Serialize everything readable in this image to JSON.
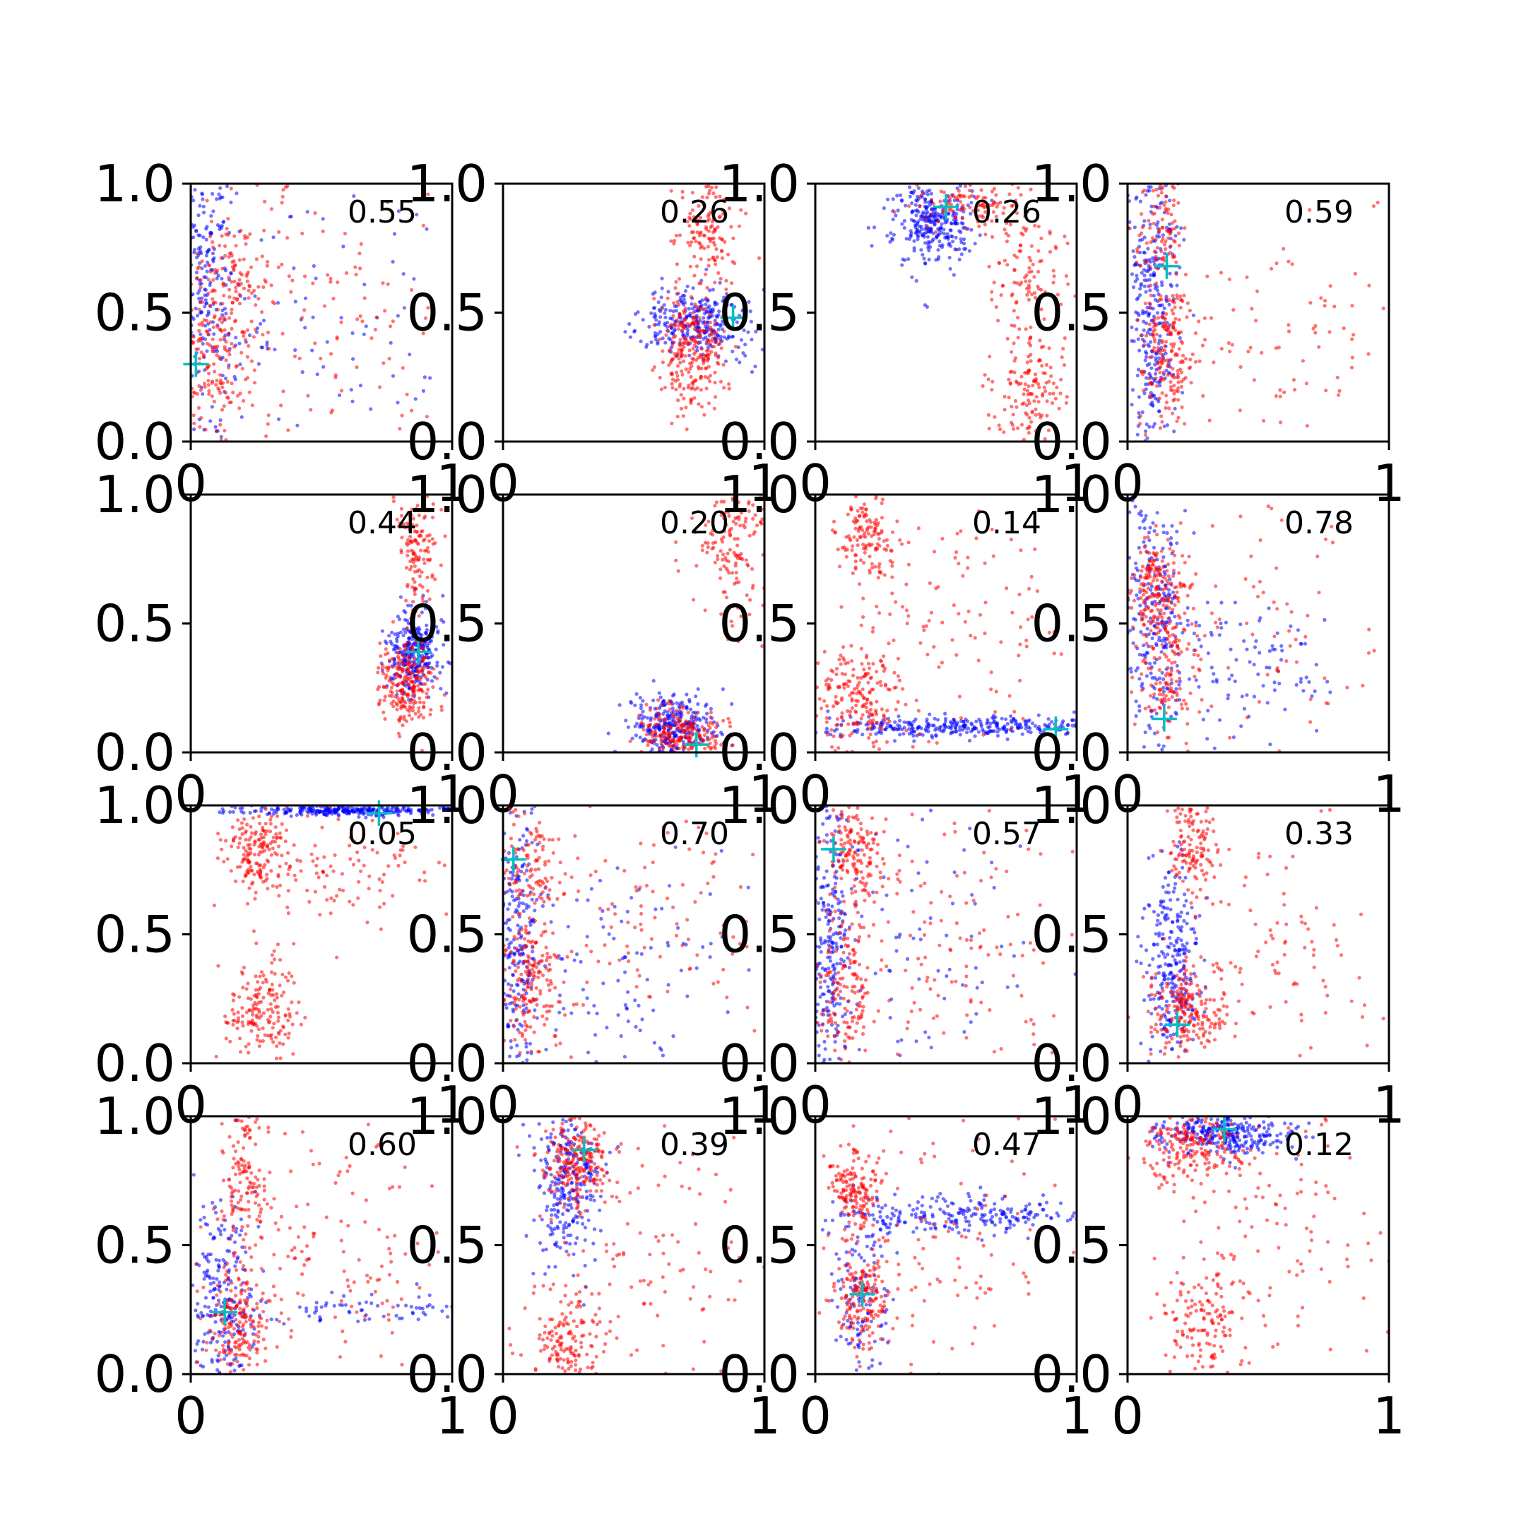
{
  "chart_data": {
    "type": "scatter",
    "grid": false,
    "colors": {
      "series_a": "#0000ff",
      "series_b": "#ff0000",
      "marker": "#00bfbf"
    },
    "xlim": [
      0,
      1
    ],
    "ylim": [
      0,
      1
    ],
    "xticks": [
      "0",
      "1"
    ],
    "yticks": [
      "0.0",
      "0.5",
      "1.0"
    ],
    "panels": [
      {
        "score": "0.55",
        "marker": [
          0.02,
          0.3
        ],
        "blue": [
          {
            "cx": 0.05,
            "cy": 0.6,
            "sx": 0.06,
            "sy": 0.3,
            "n": 260
          },
          {
            "cx": 0.4,
            "cy": 0.5,
            "sx": 0.25,
            "sy": 0.3,
            "n": 100
          }
        ],
        "red": [
          {
            "cx": 0.1,
            "cy": 0.3,
            "sx": 0.07,
            "sy": 0.15,
            "n": 160
          },
          {
            "cx": 0.15,
            "cy": 0.65,
            "sx": 0.08,
            "sy": 0.12,
            "n": 110
          },
          {
            "cx": 0.5,
            "cy": 0.5,
            "sx": 0.25,
            "sy": 0.3,
            "n": 130
          }
        ]
      },
      {
        "score": "0.26",
        "marker": [
          0.88,
          0.48
        ],
        "blue": [
          {
            "cx": 0.75,
            "cy": 0.47,
            "sx": 0.1,
            "sy": 0.07,
            "n": 300
          }
        ],
        "red": [
          {
            "cx": 0.72,
            "cy": 0.36,
            "sx": 0.06,
            "sy": 0.12,
            "n": 260
          },
          {
            "cx": 0.78,
            "cy": 0.82,
            "sx": 0.06,
            "sy": 0.12,
            "n": 130
          }
        ]
      },
      {
        "score": "0.26",
        "marker": [
          0.5,
          0.91
        ],
        "blue": [
          {
            "cx": 0.45,
            "cy": 0.85,
            "sx": 0.08,
            "sy": 0.08,
            "n": 300
          }
        ],
        "red": [
          {
            "cx": 0.6,
            "cy": 0.92,
            "sx": 0.1,
            "sy": 0.05,
            "n": 120
          },
          {
            "cx": 0.82,
            "cy": 0.65,
            "sx": 0.07,
            "sy": 0.1,
            "n": 90
          },
          {
            "cx": 0.82,
            "cy": 0.2,
            "sx": 0.07,
            "sy": 0.12,
            "n": 150
          }
        ]
      },
      {
        "score": "0.59",
        "marker": [
          0.15,
          0.68
        ],
        "blue": [
          {
            "cx": 0.1,
            "cy": 0.5,
            "sx": 0.05,
            "sy": 0.3,
            "n": 320
          }
        ],
        "red": [
          {
            "cx": 0.15,
            "cy": 0.35,
            "sx": 0.05,
            "sy": 0.13,
            "n": 180
          },
          {
            "cx": 0.13,
            "cy": 0.82,
            "sx": 0.05,
            "sy": 0.1,
            "n": 90
          },
          {
            "cx": 0.5,
            "cy": 0.45,
            "sx": 0.25,
            "sy": 0.25,
            "n": 110
          }
        ]
      },
      {
        "score": "0.44",
        "marker": [
          0.87,
          0.39
        ],
        "blue": [
          {
            "cx": 0.85,
            "cy": 0.38,
            "sx": 0.05,
            "sy": 0.08,
            "n": 280
          }
        ],
        "red": [
          {
            "cx": 0.83,
            "cy": 0.26,
            "sx": 0.05,
            "sy": 0.09,
            "n": 240
          },
          {
            "cx": 0.87,
            "cy": 0.82,
            "sx": 0.04,
            "sy": 0.12,
            "n": 130
          }
        ]
      },
      {
        "score": "0.20",
        "marker": [
          0.74,
          0.03
        ],
        "blue": [
          {
            "cx": 0.65,
            "cy": 0.1,
            "sx": 0.08,
            "sy": 0.06,
            "n": 300
          }
        ],
        "red": [
          {
            "cx": 0.68,
            "cy": 0.08,
            "sx": 0.08,
            "sy": 0.05,
            "n": 200
          },
          {
            "cx": 0.88,
            "cy": 0.8,
            "sx": 0.07,
            "sy": 0.15,
            "n": 150
          }
        ]
      },
      {
        "score": "0.14",
        "marker": [
          0.92,
          0.09
        ],
        "blue": [
          {
            "cx": 0.55,
            "cy": 0.1,
            "sx": 0.28,
            "sy": 0.02,
            "n": 320
          }
        ],
        "red": [
          {
            "cx": 0.2,
            "cy": 0.85,
            "sx": 0.06,
            "sy": 0.1,
            "n": 140
          },
          {
            "cx": 0.15,
            "cy": 0.2,
            "sx": 0.08,
            "sy": 0.1,
            "n": 200
          },
          {
            "cx": 0.5,
            "cy": 0.5,
            "sx": 0.25,
            "sy": 0.25,
            "n": 120
          }
        ]
      },
      {
        "score": "0.78",
        "marker": [
          0.14,
          0.13
        ],
        "blue": [
          {
            "cx": 0.1,
            "cy": 0.55,
            "sx": 0.06,
            "sy": 0.25,
            "n": 240
          },
          {
            "cx": 0.45,
            "cy": 0.35,
            "sx": 0.2,
            "sy": 0.15,
            "n": 110
          }
        ],
        "red": [
          {
            "cx": 0.1,
            "cy": 0.65,
            "sx": 0.05,
            "sy": 0.1,
            "n": 160
          },
          {
            "cx": 0.15,
            "cy": 0.35,
            "sx": 0.06,
            "sy": 0.15,
            "n": 160
          },
          {
            "cx": 0.5,
            "cy": 0.5,
            "sx": 0.25,
            "sy": 0.25,
            "n": 80
          }
        ]
      },
      {
        "score": "0.05",
        "marker": [
          0.72,
          0.97
        ],
        "blue": [
          {
            "cx": 0.6,
            "cy": 0.98,
            "sx": 0.22,
            "sy": 0.01,
            "n": 280
          }
        ],
        "red": [
          {
            "cx": 0.25,
            "cy": 0.82,
            "sx": 0.06,
            "sy": 0.08,
            "n": 160
          },
          {
            "cx": 0.25,
            "cy": 0.2,
            "sx": 0.08,
            "sy": 0.1,
            "n": 180
          },
          {
            "cx": 0.55,
            "cy": 0.75,
            "sx": 0.2,
            "sy": 0.12,
            "n": 110
          }
        ]
      },
      {
        "score": "0.70",
        "marker": [
          0.04,
          0.79
        ],
        "blue": [
          {
            "cx": 0.05,
            "cy": 0.5,
            "sx": 0.04,
            "sy": 0.3,
            "n": 240
          },
          {
            "cx": 0.45,
            "cy": 0.3,
            "sx": 0.25,
            "sy": 0.25,
            "n": 120
          }
        ],
        "red": [
          {
            "cx": 0.1,
            "cy": 0.3,
            "sx": 0.06,
            "sy": 0.12,
            "n": 170
          },
          {
            "cx": 0.1,
            "cy": 0.75,
            "sx": 0.06,
            "sy": 0.12,
            "n": 110
          },
          {
            "cx": 0.5,
            "cy": 0.55,
            "sx": 0.25,
            "sy": 0.25,
            "n": 130
          }
        ]
      },
      {
        "score": "0.57",
        "marker": [
          0.07,
          0.83
        ],
        "blue": [
          {
            "cx": 0.05,
            "cy": 0.5,
            "sx": 0.04,
            "sy": 0.3,
            "n": 260
          },
          {
            "cx": 0.45,
            "cy": 0.5,
            "sx": 0.25,
            "sy": 0.3,
            "n": 90
          }
        ],
        "red": [
          {
            "cx": 0.15,
            "cy": 0.8,
            "sx": 0.06,
            "sy": 0.1,
            "n": 160
          },
          {
            "cx": 0.12,
            "cy": 0.3,
            "sx": 0.06,
            "sy": 0.13,
            "n": 140
          },
          {
            "cx": 0.5,
            "cy": 0.45,
            "sx": 0.25,
            "sy": 0.3,
            "n": 140
          }
        ]
      },
      {
        "score": "0.33",
        "marker": [
          0.19,
          0.15
        ],
        "blue": [
          {
            "cx": 0.17,
            "cy": 0.35,
            "sx": 0.05,
            "sy": 0.2,
            "n": 280
          }
        ],
        "red": [
          {
            "cx": 0.23,
            "cy": 0.2,
            "sx": 0.07,
            "sy": 0.08,
            "n": 200
          },
          {
            "cx": 0.25,
            "cy": 0.85,
            "sx": 0.05,
            "sy": 0.1,
            "n": 140
          },
          {
            "cx": 0.55,
            "cy": 0.45,
            "sx": 0.25,
            "sy": 0.25,
            "n": 110
          }
        ]
      },
      {
        "score": "0.60",
        "marker": [
          0.13,
          0.24
        ],
        "blue": [
          {
            "cx": 0.12,
            "cy": 0.3,
            "sx": 0.06,
            "sy": 0.2,
            "n": 240
          },
          {
            "cx": 0.65,
            "cy": 0.25,
            "sx": 0.25,
            "sy": 0.03,
            "n": 70
          }
        ],
        "red": [
          {
            "cx": 0.18,
            "cy": 0.2,
            "sx": 0.06,
            "sy": 0.1,
            "n": 180
          },
          {
            "cx": 0.2,
            "cy": 0.75,
            "sx": 0.05,
            "sy": 0.15,
            "n": 140
          },
          {
            "cx": 0.55,
            "cy": 0.45,
            "sx": 0.25,
            "sy": 0.25,
            "n": 140
          }
        ]
      },
      {
        "score": "0.39",
        "marker": [
          0.31,
          0.87
        ],
        "blue": [
          {
            "cx": 0.25,
            "cy": 0.75,
            "sx": 0.06,
            "sy": 0.15,
            "n": 280
          }
        ],
        "red": [
          {
            "cx": 0.28,
            "cy": 0.82,
            "sx": 0.06,
            "sy": 0.08,
            "n": 220
          },
          {
            "cx": 0.25,
            "cy": 0.15,
            "sx": 0.08,
            "sy": 0.1,
            "n": 150
          },
          {
            "cx": 0.55,
            "cy": 0.5,
            "sx": 0.25,
            "sy": 0.25,
            "n": 110
          }
        ]
      },
      {
        "score": "0.47",
        "marker": [
          0.18,
          0.31
        ],
        "blue": [
          {
            "cx": 0.55,
            "cy": 0.62,
            "sx": 0.25,
            "sy": 0.04,
            "n": 240
          },
          {
            "cx": 0.18,
            "cy": 0.3,
            "sx": 0.05,
            "sy": 0.15,
            "n": 120
          }
        ],
        "red": [
          {
            "cx": 0.15,
            "cy": 0.72,
            "sx": 0.05,
            "sy": 0.08,
            "n": 160
          },
          {
            "cx": 0.18,
            "cy": 0.3,
            "sx": 0.06,
            "sy": 0.1,
            "n": 180
          },
          {
            "cx": 0.5,
            "cy": 0.5,
            "sx": 0.25,
            "sy": 0.25,
            "n": 100
          }
        ]
      },
      {
        "score": "0.12",
        "marker": [
          0.37,
          0.95
        ],
        "blue": [
          {
            "cx": 0.38,
            "cy": 0.93,
            "sx": 0.12,
            "sy": 0.04,
            "n": 300
          }
        ],
        "red": [
          {
            "cx": 0.25,
            "cy": 0.88,
            "sx": 0.1,
            "sy": 0.07,
            "n": 200
          },
          {
            "cx": 0.3,
            "cy": 0.2,
            "sx": 0.08,
            "sy": 0.12,
            "n": 150
          },
          {
            "cx": 0.6,
            "cy": 0.6,
            "sx": 0.25,
            "sy": 0.25,
            "n": 110
          }
        ]
      }
    ]
  }
}
